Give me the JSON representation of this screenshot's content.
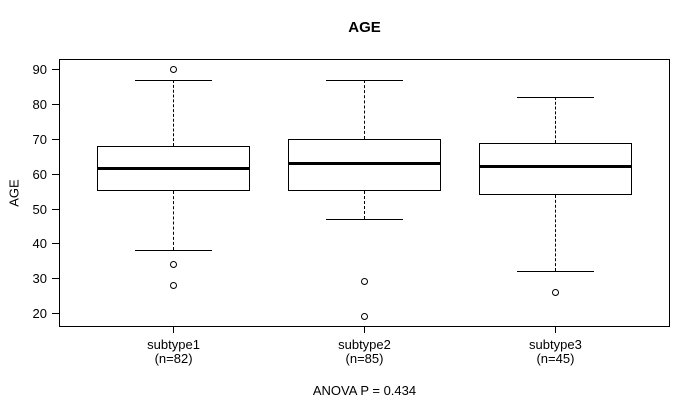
{
  "chart_data": {
    "type": "boxplot",
    "title": "AGE",
    "ylabel": "AGE",
    "ylim": [
      16,
      93
    ],
    "yticks": [
      20,
      30,
      40,
      50,
      60,
      70,
      80,
      90
    ],
    "grid": false,
    "legend": null,
    "annotation": "ANOVA P = 0.434",
    "groups": [
      {
        "label": "subtype1",
        "n_label": "(n=82)",
        "n": 82,
        "whisker_low": 38,
        "q1": 55,
        "median": 61.5,
        "q3": 68,
        "whisker_high": 87,
        "outliers": [
          90,
          34,
          28
        ]
      },
      {
        "label": "subtype2",
        "n_label": "(n=85)",
        "n": 85,
        "whisker_low": 47,
        "q1": 55,
        "median": 63,
        "q3": 70,
        "whisker_high": 87,
        "outliers": [
          29,
          19
        ]
      },
      {
        "label": "subtype3",
        "n_label": "(n=45)",
        "n": 45,
        "whisker_low": 32,
        "q1": 54,
        "median": 62,
        "q3": 69,
        "whisker_high": 82,
        "outliers": [
          26
        ]
      }
    ],
    "colors": {
      "line": "#000000",
      "box_fill": "#ffffff",
      "background": "#ffffff",
      "text": "#000000"
    }
  }
}
